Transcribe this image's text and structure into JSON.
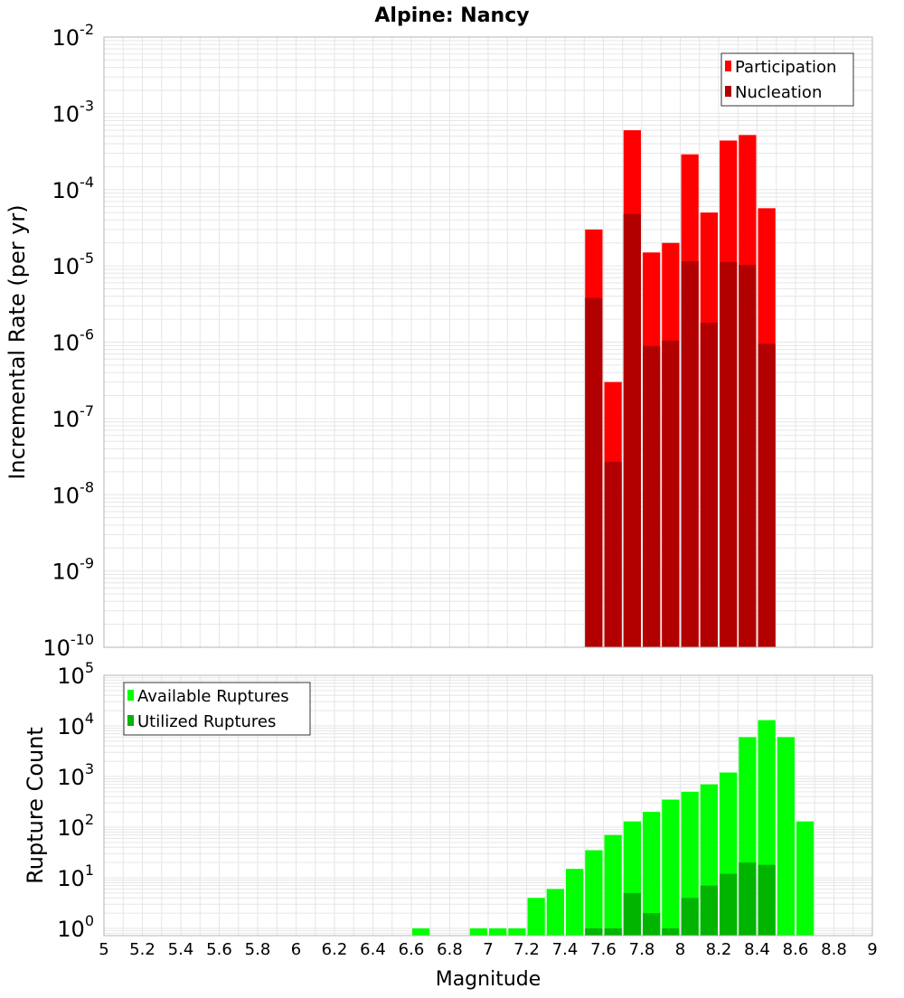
{
  "title": "Alpine: Nancy",
  "colors": {
    "participation": "#ff0000",
    "nucleation": "#b20000",
    "available": "#00ff00",
    "utilized": "#00b400",
    "grid": "#e6e6e6",
    "frame": "#b4b4b4"
  },
  "chart_data": [
    {
      "type": "bar",
      "ylabel": "Incremental Rate (per yr)",
      "yscale": "log",
      "ylim": [
        1e-10,
        0.01
      ],
      "xlim": [
        5,
        9
      ],
      "y_ticks": [
        {
          "base": "10",
          "exp": "-10",
          "value": 1e-10
        },
        {
          "base": "10",
          "exp": "-9",
          "value": 1e-09
        },
        {
          "base": "10",
          "exp": "-8",
          "value": 1e-08
        },
        {
          "base": "10",
          "exp": "-7",
          "value": 1e-07
        },
        {
          "base": "10",
          "exp": "-6",
          "value": 1e-06
        },
        {
          "base": "10",
          "exp": "-5",
          "value": 1e-05
        },
        {
          "base": "10",
          "exp": "-4",
          "value": 0.0001
        },
        {
          "base": "10",
          "exp": "-3",
          "value": 0.001
        },
        {
          "base": "10",
          "exp": "-2",
          "value": 0.01
        }
      ],
      "grid": true,
      "legend_position": "top-right",
      "x": [
        7.55,
        7.65,
        7.75,
        7.85,
        7.95,
        8.05,
        8.15,
        8.25,
        8.35,
        8.45
      ],
      "series": [
        {
          "name": "Participation",
          "values": [
            3e-05,
            3e-07,
            0.0006,
            1.5e-05,
            2e-05,
            0.00029,
            5e-05,
            0.00044,
            0.00052,
            5.7e-05
          ]
        },
        {
          "name": "Nucleation",
          "values": [
            3.8e-06,
            2.7e-08,
            4.8e-05,
            8.9e-07,
            1.05e-06,
            1.15e-05,
            1.8e-06,
            1.12e-05,
            1.03e-05,
            9.5e-07
          ]
        }
      ]
    },
    {
      "type": "bar",
      "xlabel": "Magnitude",
      "ylabel": "Rupture Count",
      "yscale": "log",
      "ylim": [
        0.72,
        100000
      ],
      "xlim": [
        5,
        9
      ],
      "y_ticks": [
        {
          "base": "10",
          "exp": "0",
          "value": 1
        },
        {
          "base": "10",
          "exp": "1",
          "value": 10
        },
        {
          "base": "10",
          "exp": "2",
          "value": 100
        },
        {
          "base": "10",
          "exp": "3",
          "value": 1000
        },
        {
          "base": "10",
          "exp": "4",
          "value": 10000
        },
        {
          "base": "10",
          "exp": "5",
          "value": 100000
        }
      ],
      "x_ticks": [
        "5",
        "5.2",
        "5.4",
        "5.6",
        "5.8",
        "6",
        "6.2",
        "6.4",
        "6.6",
        "6.8",
        "7",
        "7.2",
        "7.4",
        "7.6",
        "7.8",
        "8",
        "8.2",
        "8.4",
        "8.6",
        "8.8",
        "9"
      ],
      "grid": true,
      "legend_position": "top-left",
      "x": [
        6.65,
        6.95,
        7.05,
        7.15,
        7.25,
        7.35,
        7.45,
        7.55,
        7.65,
        7.75,
        7.85,
        7.95,
        8.05,
        8.15,
        8.25,
        8.35,
        8.45,
        8.55,
        8.65
      ],
      "series": [
        {
          "name": "Available Ruptures",
          "values": [
            1,
            1,
            1,
            1,
            4,
            6,
            15,
            35,
            70,
            130,
            200,
            350,
            500,
            700,
            1200,
            6000,
            13000,
            6000,
            130
          ]
        },
        {
          "name": "Utilized Ruptures",
          "values": [
            0,
            0,
            0,
            0,
            0,
            0,
            0,
            1,
            1,
            5,
            2,
            1,
            4,
            7,
            12,
            20,
            18,
            0,
            0
          ]
        }
      ]
    }
  ]
}
